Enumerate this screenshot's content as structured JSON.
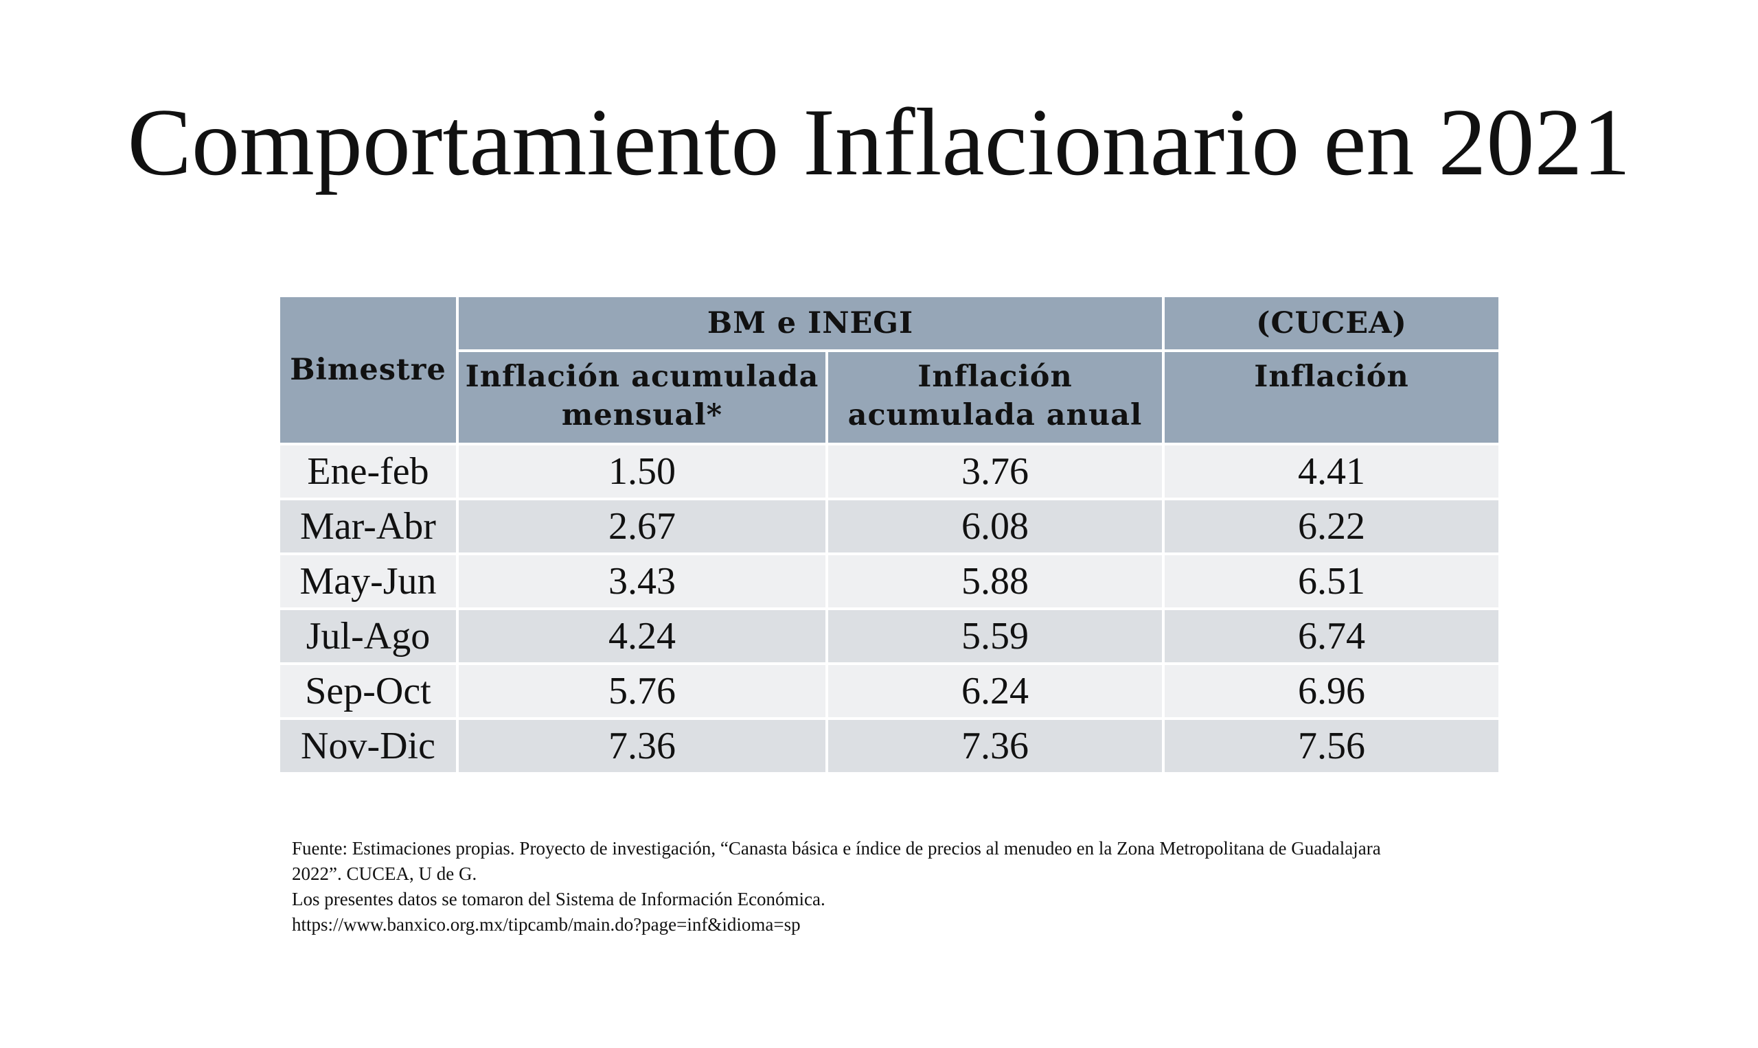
{
  "title": "Comportamiento Inflacionario en 2021",
  "table": {
    "col_bimestre": "Bimestre",
    "group_bm_inegi": "BM e INEGI",
    "group_cucea": "(CUCEA)",
    "sub_inflacion_mensual": [
      "Inflación acumulada",
      "mensual*"
    ],
    "sub_inflacion_anual": [
      "Inflación",
      "acumulada anual"
    ],
    "sub_inflacion": "Inflación",
    "rows": [
      {
        "bimestre": "Ene-feb",
        "mensual": "1.50",
        "anual": "3.76",
        "cucea": "4.41"
      },
      {
        "bimestre": "Mar-Abr",
        "mensual": "2.67",
        "anual": "6.08",
        "cucea": "6.22"
      },
      {
        "bimestre": "May-Jun",
        "mensual": "3.43",
        "anual": "5.88",
        "cucea": "6.51"
      },
      {
        "bimestre": "Jul-Ago",
        "mensual": "4.24",
        "anual": "5.59",
        "cucea": "6.74"
      },
      {
        "bimestre": "Sep-Oct",
        "mensual": "5.76",
        "anual": "6.24",
        "cucea": "6.96"
      },
      {
        "bimestre": "Nov-Dic",
        "mensual": "7.36",
        "anual": "7.36",
        "cucea": "7.56"
      }
    ]
  },
  "footer": {
    "line1": "Fuente: Estimaciones propias. Proyecto de investigación, “Canasta básica e índice de precios al menudeo en la Zona Metropolitana de Guadalajara",
    "line2": "2022”. CUCEA, U de G.",
    "line3": "Los presentes datos se tomaron del Sistema de Información Económica.",
    "line4": "https://www.banxico.org.mx/tipcamb/main.do?page=inf&idioma=sp"
  }
}
